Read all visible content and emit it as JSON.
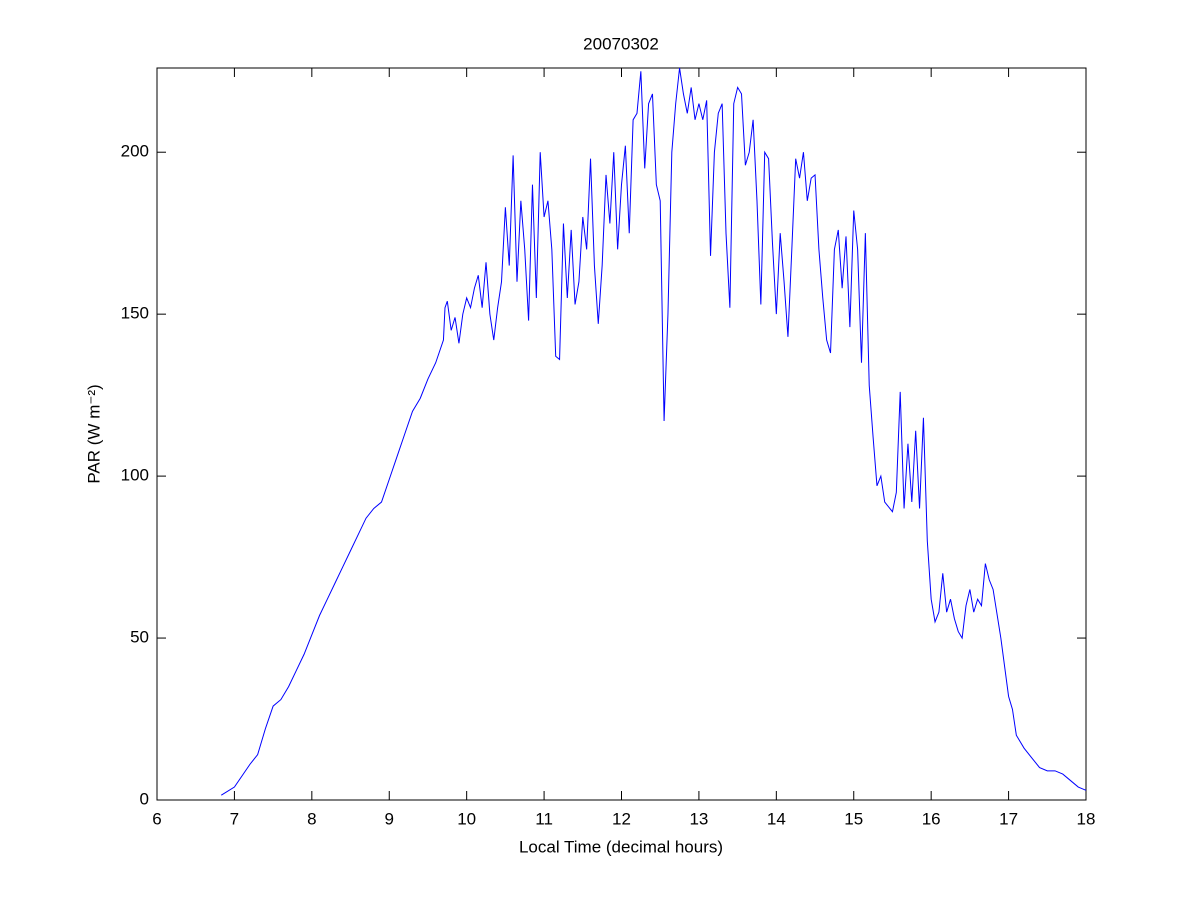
{
  "chart_data": {
    "type": "line",
    "title": "20070302",
    "x_label": "Local Time (decimal hours)",
    "y_label": "PAR (W m⁻²)",
    "color": "#0000ff",
    "x": [
      6.83,
      7.0,
      7.2,
      7.3,
      7.4,
      7.5,
      7.6,
      7.7,
      7.8,
      7.9,
      8.0,
      8.1,
      8.2,
      8.3,
      8.4,
      8.5,
      8.6,
      8.7,
      8.8,
      8.9,
      9.0,
      9.1,
      9.2,
      9.3,
      9.4,
      9.5,
      9.6,
      9.7,
      9.72,
      9.75,
      9.8,
      9.85,
      9.9,
      9.95,
      10.0,
      10.05,
      10.1,
      10.15,
      10.2,
      10.25,
      10.3,
      10.35,
      10.4,
      10.45,
      10.5,
      10.55,
      10.6,
      10.65,
      10.7,
      10.75,
      10.8,
      10.85,
      10.9,
      10.95,
      11.0,
      11.05,
      11.1,
      11.15,
      11.2,
      11.25,
      11.3,
      11.35,
      11.4,
      11.45,
      11.5,
      11.55,
      11.6,
      11.65,
      11.7,
      11.75,
      11.8,
      11.85,
      11.9,
      11.95,
      12.0,
      12.05,
      12.1,
      12.15,
      12.2,
      12.25,
      12.3,
      12.35,
      12.4,
      12.45,
      12.5,
      12.55,
      12.6,
      12.65,
      12.7,
      12.75,
      12.8,
      12.85,
      12.9,
      12.95,
      13.0,
      13.05,
      13.1,
      13.15,
      13.2,
      13.25,
      13.3,
      13.35,
      13.4,
      13.45,
      13.5,
      13.55,
      13.6,
      13.65,
      13.7,
      13.75,
      13.8,
      13.85,
      13.9,
      13.95,
      14.0,
      14.05,
      14.1,
      14.15,
      14.2,
      14.25,
      14.3,
      14.35,
      14.4,
      14.45,
      14.5,
      14.55,
      14.6,
      14.65,
      14.7,
      14.75,
      14.8,
      14.85,
      14.9,
      14.95,
      15.0,
      15.05,
      15.1,
      15.15,
      15.2,
      15.25,
      15.3,
      15.35,
      15.4,
      15.5,
      15.55,
      15.6,
      15.65,
      15.7,
      15.75,
      15.8,
      15.85,
      15.9,
      15.95,
      16.0,
      16.05,
      16.1,
      16.15,
      16.2,
      16.25,
      16.3,
      16.35,
      16.4,
      16.45,
      16.5,
      16.55,
      16.6,
      16.65,
      16.7,
      16.75,
      16.8,
      16.9,
      17.0,
      17.05,
      17.1,
      17.2,
      17.3,
      17.4,
      17.5,
      17.6,
      17.7,
      17.8,
      17.9,
      18.0
    ],
    "values": [
      1.5,
      4,
      11,
      14,
      22,
      29,
      31,
      35,
      40,
      45,
      51,
      57,
      62,
      67,
      72,
      77,
      82,
      87,
      90,
      92,
      99,
      106,
      113,
      120,
      124,
      130,
      135,
      142,
      152,
      154,
      145,
      149,
      141,
      150,
      155,
      152,
      158,
      162,
      152,
      166,
      150,
      142,
      152,
      160,
      183,
      165,
      199,
      160,
      185,
      170,
      148,
      190,
      155,
      200,
      180,
      185,
      170,
      137,
      136,
      178,
      155,
      176,
      153,
      160,
      180,
      170,
      198,
      165,
      147,
      165,
      193,
      178,
      200,
      170,
      190,
      202,
      175,
      210,
      212,
      225,
      195,
      215,
      218,
      190,
      185,
      117,
      150,
      200,
      215,
      226,
      218,
      212,
      220,
      210,
      215,
      210,
      216,
      168,
      200,
      212,
      215,
      175,
      152,
      215,
      220,
      218,
      196,
      200,
      210,
      185,
      153,
      200,
      198,
      172,
      150,
      175,
      160,
      143,
      170,
      198,
      192,
      200,
      185,
      192,
      193,
      170,
      155,
      142,
      138,
      170,
      176,
      158,
      174,
      146,
      182,
      170,
      135,
      175,
      128,
      112,
      97,
      100,
      92,
      89,
      95,
      126,
      90,
      110,
      92,
      114,
      90,
      118,
      80,
      62,
      55,
      58,
      70,
      58,
      62,
      56,
      52,
      50,
      60,
      65,
      58,
      62,
      60,
      73,
      68,
      65,
      50,
      32,
      28,
      20,
      16,
      13,
      10,
      9,
      9,
      8,
      6,
      4,
      3
    ],
    "xlim": [
      6,
      18
    ],
    "xticks": [
      6,
      7,
      8,
      9,
      10,
      11,
      12,
      13,
      14,
      15,
      16,
      17,
      18
    ],
    "ylim": [
      0,
      226
    ],
    "yticks": [
      0,
      50,
      100,
      150,
      200
    ]
  }
}
